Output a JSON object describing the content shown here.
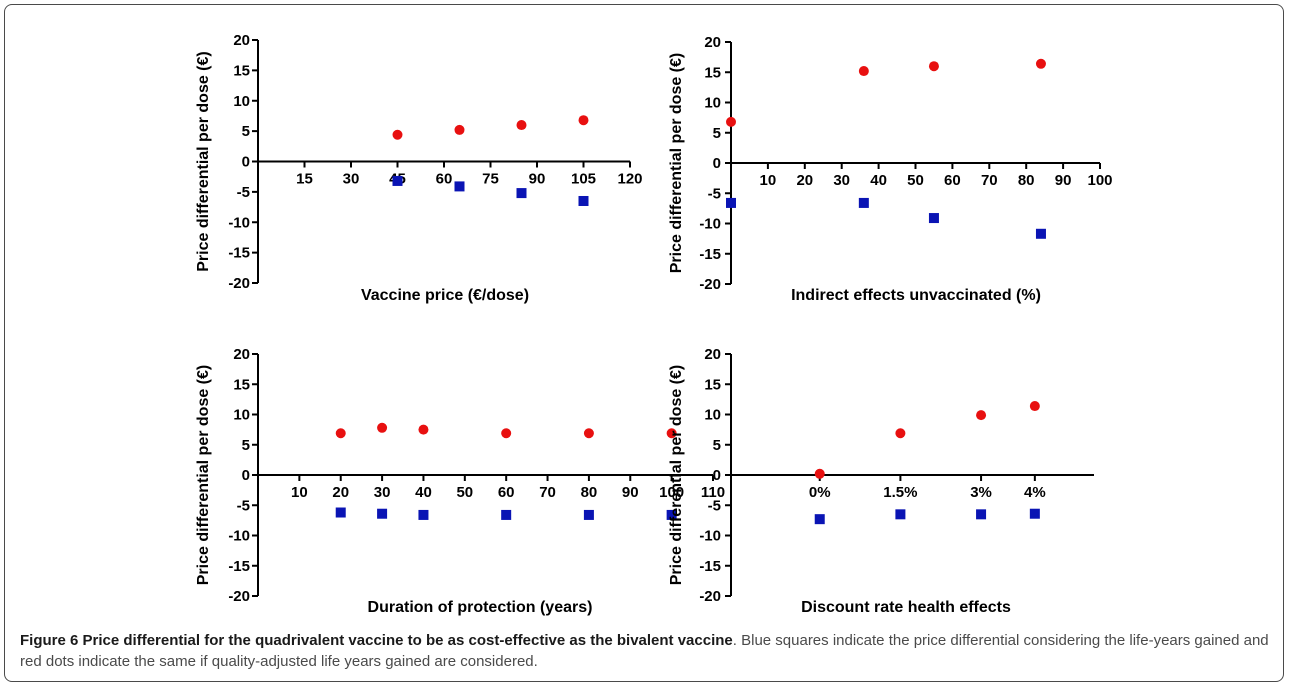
{
  "caption": {
    "figure_label": "Figure 6",
    "title": "Price differential for the quadrivalent vaccine to be as cost-effective as the bivalent vaccine",
    "text": ". Blue squares indicate the price differential considering the life-years gained and red dots indicate the same if quality-adjusted life years gained are considered."
  },
  "colors": {
    "life_years": "#0a14b4",
    "qalys": "#e81010"
  },
  "chart_data": [
    {
      "type": "scatter",
      "ylabel": "Price differential per dose (€)",
      "xlabel": "Vaccine price (€/dose)",
      "xlim": [
        0,
        120
      ],
      "ylim": [
        -20,
        20
      ],
      "xticks": [
        15,
        30,
        45,
        60,
        75,
        90,
        105,
        120
      ],
      "yticks": [
        20,
        15,
        10,
        5,
        0,
        -5,
        -10,
        -15,
        -20
      ],
      "series": [
        {
          "marker": "circle",
          "color": "#e81010",
          "points": [
            [
              45,
              4.4
            ],
            [
              65,
              5.2
            ],
            [
              85,
              6.0
            ],
            [
              105,
              6.8
            ]
          ]
        },
        {
          "marker": "square",
          "color": "#0a14b4",
          "points": [
            [
              45,
              -3.2
            ],
            [
              65,
              -4.1
            ],
            [
              85,
              -5.2
            ],
            [
              105,
              -6.5
            ]
          ]
        }
      ]
    },
    {
      "type": "scatter",
      "ylabel": "Price differential per dose (€)",
      "xlabel": "Indirect effects unvaccinated (%)",
      "xlim": [
        0,
        100
      ],
      "ylim": [
        -20,
        20
      ],
      "xticks": [
        10,
        20,
        30,
        40,
        50,
        60,
        70,
        80,
        90,
        100
      ],
      "yticks": [
        20,
        15,
        10,
        5,
        0,
        -5,
        -10,
        -15,
        -20
      ],
      "series": [
        {
          "marker": "circle",
          "color": "#e81010",
          "points": [
            [
              0,
              6.8
            ],
            [
              36,
              15.2
            ],
            [
              55,
              16.0
            ],
            [
              84,
              16.4
            ]
          ]
        },
        {
          "marker": "square",
          "color": "#0a14b4",
          "points": [
            [
              0,
              -6.6
            ],
            [
              36,
              -6.6
            ],
            [
              55,
              -9.1
            ],
            [
              84,
              -11.7
            ]
          ]
        }
      ]
    },
    {
      "type": "scatter",
      "ylabel": "Price differential per dose (€)",
      "xlabel": "Duration of protection (years)",
      "xlim": [
        0,
        110
      ],
      "ylim": [
        -20,
        20
      ],
      "xticks": [
        10,
        20,
        30,
        40,
        50,
        60,
        70,
        80,
        90,
        100,
        110
      ],
      "yticks": [
        20,
        15,
        10,
        5,
        0,
        -5,
        -10,
        -15,
        -20
      ],
      "series": [
        {
          "marker": "circle",
          "color": "#e81010",
          "points": [
            [
              20,
              6.9
            ],
            [
              30,
              7.8
            ],
            [
              40,
              7.5
            ],
            [
              60,
              6.9
            ],
            [
              80,
              6.9
            ],
            [
              100,
              6.9
            ]
          ]
        },
        {
          "marker": "square",
          "color": "#0a14b4",
          "points": [
            [
              20,
              -6.2
            ],
            [
              30,
              -6.4
            ],
            [
              40,
              -6.6
            ],
            [
              60,
              -6.6
            ],
            [
              80,
              -6.6
            ],
            [
              100,
              -6.6
            ]
          ]
        }
      ]
    },
    {
      "type": "scatter",
      "ylabel": "Price differential per dose (€)",
      "xlabel": "Discount rate health effects",
      "xlim": [
        -1.65,
        5.1
      ],
      "ylim": [
        -20,
        20
      ],
      "xticks": [
        0,
        1.5,
        3,
        4
      ],
      "xtick_labels": [
        "0%",
        "1.5%",
        "3%",
        "4%"
      ],
      "yticks": [
        20,
        15,
        10,
        5,
        0,
        -5,
        -10,
        -15,
        -20
      ],
      "series": [
        {
          "marker": "circle",
          "color": "#e81010",
          "points": [
            [
              0,
              0.2
            ],
            [
              1.5,
              6.9
            ],
            [
              3,
              9.9
            ],
            [
              4,
              11.4
            ]
          ]
        },
        {
          "marker": "square",
          "color": "#0a14b4",
          "points": [
            [
              0,
              -7.3
            ],
            [
              1.5,
              -6.5
            ],
            [
              3,
              -6.5
            ],
            [
              4,
              -6.4
            ]
          ]
        }
      ]
    }
  ]
}
